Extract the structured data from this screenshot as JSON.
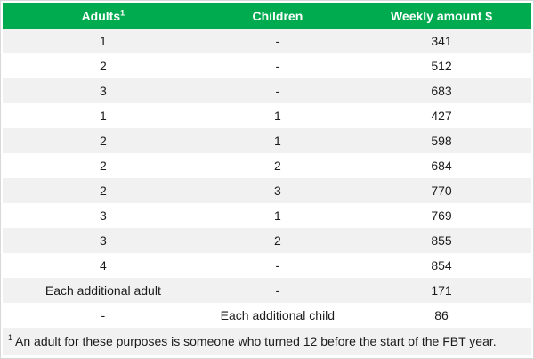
{
  "colors": {
    "header_bg": "#00AB4F",
    "header_text": "#ffffff",
    "row_alt_bg": "#f1f1f1",
    "row_bg": "#ffffff",
    "text": "#1b1b1b",
    "border": "#d8d8d8"
  },
  "table": {
    "headers": [
      {
        "label": "Adults",
        "sup": "1"
      },
      {
        "label": "Children"
      },
      {
        "label": "Weekly amount $"
      }
    ],
    "rows": [
      [
        "1",
        "-",
        "341"
      ],
      [
        "2",
        "-",
        "512"
      ],
      [
        "3",
        "-",
        "683"
      ],
      [
        "1",
        "1",
        "427"
      ],
      [
        "2",
        "1",
        "598"
      ],
      [
        "2",
        "2",
        "684"
      ],
      [
        "2",
        "3",
        "770"
      ],
      [
        "3",
        "1",
        "769"
      ],
      [
        "3",
        "2",
        "855"
      ],
      [
        "4",
        "-",
        "854"
      ],
      [
        "Each additional adult",
        "-",
        "171"
      ],
      [
        "-",
        "Each additional child",
        "86"
      ]
    ]
  },
  "footnote": {
    "sup": "1",
    "text": "An adult for these purposes is someone who turned 12 before the start of the FBT year."
  }
}
